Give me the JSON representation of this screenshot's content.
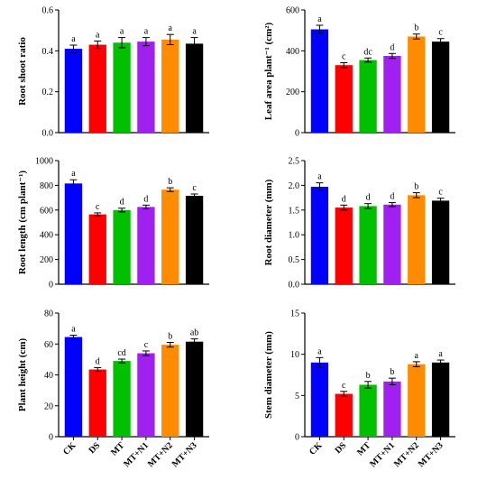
{
  "categories": [
    "CK",
    "DS",
    "MT",
    "MT+N1",
    "MT+N2",
    "MT+N3"
  ],
  "colors": [
    "#0000ff",
    "#ff0000",
    "#00c000",
    "#a020f0",
    "#ff8c00",
    "#000000"
  ],
  "chart_data": [
    {
      "type": "bar",
      "ylabel": "Root shoot ratio",
      "ylim": [
        0,
        0.6
      ],
      "yticks": [
        "0.0",
        "0.2",
        "0.4",
        "0.6"
      ],
      "values": [
        0.41,
        0.43,
        0.44,
        0.445,
        0.455,
        0.435
      ],
      "errors": [
        0.018,
        0.018,
        0.025,
        0.02,
        0.025,
        0.03
      ],
      "letters": [
        "a",
        "a",
        "a",
        "a",
        "a",
        "a"
      ]
    },
    {
      "type": "bar",
      "ylabel": "Leaf area plant⁻¹ (cm²)",
      "ylim": [
        0,
        600
      ],
      "yticks": [
        "0",
        "200",
        "400",
        "600"
      ],
      "values": [
        505,
        330,
        355,
        375,
        470,
        445
      ],
      "errors": [
        20,
        12,
        10,
        12,
        12,
        15
      ],
      "letters": [
        "a",
        "c",
        "dc",
        "d",
        "b",
        "c"
      ]
    },
    {
      "type": "bar",
      "ylabel": "Root length (cm plant⁻¹)",
      "ylim": [
        0,
        1000
      ],
      "yticks": [
        "0",
        "200",
        "400",
        "600",
        "800",
        "1000"
      ],
      "values": [
        815,
        565,
        600,
        625,
        765,
        715
      ],
      "errors": [
        30,
        12,
        15,
        15,
        15,
        15
      ],
      "letters": [
        "a",
        "c",
        "d",
        "d",
        "b",
        "c"
      ]
    },
    {
      "type": "bar",
      "ylabel": "Root diameter (mm)",
      "ylim": [
        0,
        2.5
      ],
      "yticks": [
        "0.0",
        "0.5",
        "1.0",
        "1.5",
        "2.0",
        "2.5"
      ],
      "values": [
        1.97,
        1.55,
        1.58,
        1.61,
        1.8,
        1.69
      ],
      "errors": [
        0.08,
        0.05,
        0.05,
        0.04,
        0.05,
        0.05
      ],
      "letters": [
        "a",
        "d",
        "d",
        "d",
        "b",
        "c"
      ]
    },
    {
      "type": "bar",
      "ylabel": "Plant height (cm)",
      "ylim": [
        0,
        80
      ],
      "yticks": [
        "0",
        "20",
        "40",
        "60",
        "80"
      ],
      "values": [
        64.5,
        43.5,
        49,
        54,
        59.5,
        61.5
      ],
      "errors": [
        1.2,
        1.2,
        1.2,
        1.5,
        1.5,
        1.8
      ],
      "letters": [
        "a",
        "d",
        "cd",
        "c",
        "b",
        "ab"
      ]
    },
    {
      "type": "bar",
      "ylabel": "Stem diameter (mm)",
      "ylim": [
        0,
        15
      ],
      "yticks": [
        "0",
        "5",
        "10",
        "15"
      ],
      "values": [
        9.0,
        5.2,
        6.3,
        6.7,
        8.8,
        9.0
      ],
      "errors": [
        0.6,
        0.3,
        0.4,
        0.4,
        0.3,
        0.3
      ],
      "letters": [
        "a",
        "c",
        "b",
        "b",
        "a",
        "a"
      ]
    }
  ]
}
